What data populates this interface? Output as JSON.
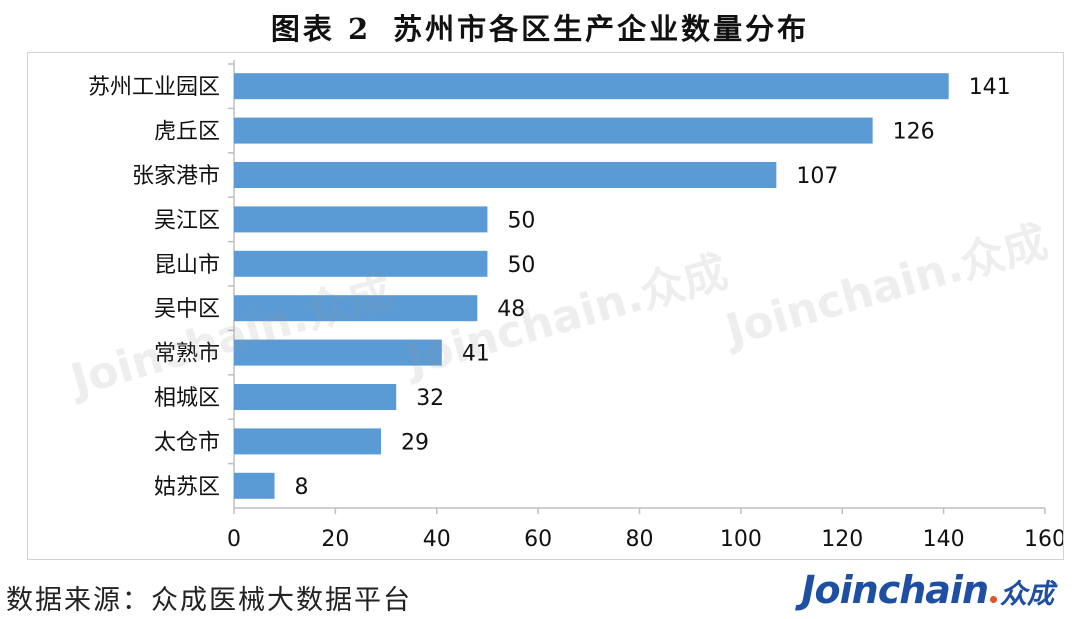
{
  "title": {
    "prefix": "图表 2",
    "text": "苏州市各区生产企业数量分布"
  },
  "source": "数据来源：众成医械大数据平台",
  "brand": {
    "word": "Joinchain",
    "cn": "众成"
  },
  "watermark": "Joinchain.众成",
  "colors": {
    "bar": "#5b9bd5",
    "axis": "#bfbfbf"
  },
  "chart_data": {
    "type": "bar",
    "orientation": "horizontal",
    "categories": [
      "苏州工业园区",
      "虎丘区",
      "张家港市",
      "吴江区",
      "昆山市",
      "吴中区",
      "常熟市",
      "相城区",
      "太仓市",
      "姑苏区"
    ],
    "values": [
      141,
      126,
      107,
      50,
      50,
      48,
      41,
      32,
      29,
      8
    ],
    "xlim": [
      0,
      160
    ],
    "xticks": [
      0,
      20,
      40,
      60,
      80,
      100,
      120,
      140,
      160
    ],
    "grid": false,
    "data_labels": true
  }
}
